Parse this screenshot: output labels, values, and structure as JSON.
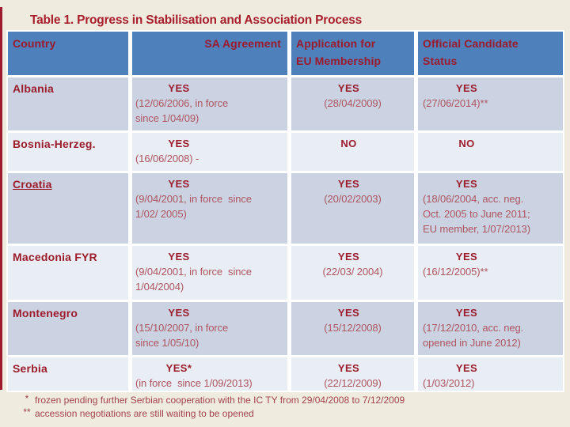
{
  "title": "Table 1. Progress in Stabilisation and Association Process",
  "table": {
    "headers": [
      "Country",
      "SA Agreement",
      "Application for\nEU Membership",
      "Official Candidate\nStatus"
    ],
    "rows": [
      {
        "country": "Albania",
        "sa": {
          "status": "YES",
          "detail": "(12/06/2006, in force\nsince 1/04/09)"
        },
        "app": {
          "status": "YES",
          "detail": "(28/04/2009)"
        },
        "ocs": {
          "status": "YES",
          "detail": "(27/06/2014)**"
        }
      },
      {
        "country": "Bosnia-Herzeg.",
        "sa": {
          "status": "YES",
          "detail": "(16/06/2008) -"
        },
        "app": {
          "status": "NO",
          "detail": ""
        },
        "ocs": {
          "status": "NO",
          "detail": ""
        }
      },
      {
        "country": "Croatia",
        "sa": {
          "status": "YES",
          "detail": "(9/04/2001, in force  since\n1/02/ 2005)"
        },
        "app": {
          "status": "YES",
          "detail": "(20/02/2003)"
        },
        "ocs": {
          "status": "YES",
          "detail": "(18/06/2004, acc. neg.\nOct. 2005 to June 2011;\nEU member, 1/07/2013)"
        }
      },
      {
        "country": "Macedonia FYR",
        "sa": {
          "status": "YES",
          "detail": "(9/04/2001, in force  since\n1/04/2004)"
        },
        "app": {
          "status": "YES",
          "detail": "(22/03/ 2004)"
        },
        "ocs": {
          "status": "YES",
          "detail": "(16/12/2005)**"
        }
      },
      {
        "country": "Montenegro",
        "sa": {
          "status": "YES",
          "detail": "(15/10/2007, in force\nsince 1/05/10)"
        },
        "app": {
          "status": "YES",
          "detail": "(15/12/2008)"
        },
        "ocs": {
          "status": "YES",
          "detail": "(17/12/2010, acc. neg.\nopened in June 2012)"
        }
      },
      {
        "country": "Serbia",
        "sa": {
          "status": "YES*",
          "detail": "(in force  since 1/09/2013)"
        },
        "app": {
          "status": "YES",
          "detail": "(22/12/2009)"
        },
        "ocs": {
          "status": "YES",
          "detail": "(1/03/2012)"
        }
      }
    ]
  },
  "footnotes": [
    {
      "marker": "*",
      "text": "frozen pending further Serbian cooperation with the IC TY from 29/04/2008 to 7/12/2009"
    },
    {
      "marker": "**",
      "text": "accession negotiations are still waiting to be opened"
    }
  ],
  "colors": {
    "header_bg": "#4e80bb",
    "row_dark": "#cbd3e3",
    "row_light": "#e9edf4",
    "accent_red": "#9c1b2e",
    "text_red": "#9c1c2c",
    "detail_red": "#ae5560",
    "background": "#efecdf"
  }
}
